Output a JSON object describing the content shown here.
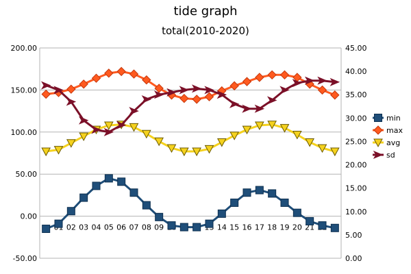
{
  "chart_data": {
    "type": "line",
    "title": "tide graph",
    "subtitle": "total(2010-2020)",
    "categories": [
      "",
      "01",
      "02",
      "03",
      "04",
      "05",
      "06",
      "07",
      "08",
      "09",
      "10",
      "11",
      "12",
      "13",
      "14",
      "15",
      "16",
      "17",
      "18",
      "19",
      "20",
      "21",
      "22",
      ""
    ],
    "y_left": {
      "min": -50,
      "max": 200,
      "step": 50,
      "tick_labels": [
        "-50.00",
        "0.00",
        "50.00",
        "100.00",
        "150.00",
        "200.00"
      ]
    },
    "y_right": {
      "min": 0,
      "max": 45,
      "step": 5,
      "tick_labels": [
        "0.00",
        "5.00",
        "10.00",
        "15.00",
        "20.00",
        "25.00",
        "30.00",
        "35.00",
        "40.00",
        "45.00"
      ]
    },
    "grid": "horizontal",
    "legend_position": "right",
    "series": [
      {
        "name": "min",
        "axis": "left",
        "color": "#1f4e79",
        "marker": "square",
        "values": [
          -15,
          -9,
          6,
          22,
          36,
          45,
          41,
          28,
          13,
          -1,
          -11,
          -13,
          -13,
          -9,
          3,
          16,
          28,
          31,
          27,
          16,
          4,
          -6,
          -11,
          -14
        ]
      },
      {
        "name": "max",
        "axis": "left",
        "color": "#ff5a1f",
        "marker": "diamond",
        "values": [
          145,
          147,
          151,
          157,
          164,
          170,
          172,
          169,
          162,
          152,
          144,
          140,
          139,
          142,
          149,
          155,
          160,
          165,
          168,
          168,
          165,
          157,
          150,
          144
        ]
      },
      {
        "name": "avg",
        "axis": "left",
        "color": "#f5d21e",
        "marker": "triangle-down",
        "values": [
          77,
          79,
          87,
          95,
          103,
          108,
          109,
          106,
          98,
          89,
          81,
          77,
          77,
          80,
          88,
          96,
          103,
          108,
          109,
          105,
          97,
          88,
          81,
          77
        ]
      },
      {
        "name": "sd",
        "axis": "right",
        "color": "#7b1028",
        "marker": "arrow",
        "values": [
          37,
          36,
          33.5,
          29.5,
          27.5,
          27,
          28.5,
          31.5,
          34,
          35,
          35.5,
          36,
          36.3,
          36,
          35,
          33,
          32,
          32,
          33.8,
          36,
          37.5,
          38,
          38,
          37.7
        ]
      }
    ]
  }
}
